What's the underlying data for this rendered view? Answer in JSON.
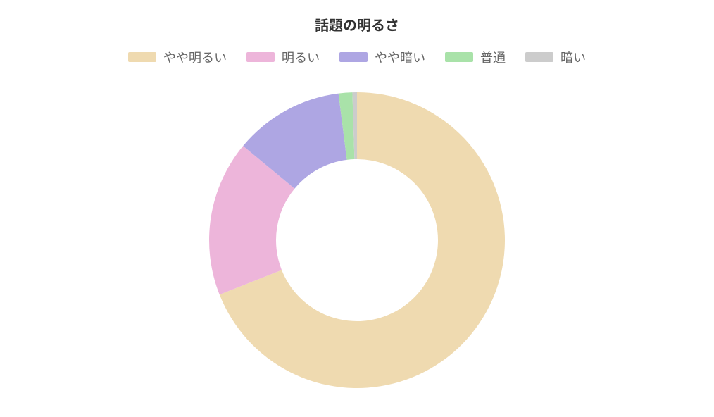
{
  "chart": {
    "type": "donut",
    "title": "話題の明るさ",
    "title_fontsize": 20,
    "title_fontweight": 700,
    "title_color": "#333333",
    "background_color": "#ffffff",
    "legend_text_color": "#666666",
    "legend_fontsize": 18,
    "legend_swatch_width": 40,
    "legend_swatch_height": 14,
    "donut_outer_radius": 210,
    "donut_inner_radius": 115,
    "start_angle_deg": 0,
    "direction": "clockwise",
    "segments": [
      {
        "label": "やや明るい",
        "value": 69,
        "color": "#efdab0"
      },
      {
        "label": "明るい",
        "value": 17,
        "color": "#edb5da"
      },
      {
        "label": "やや暗い",
        "value": 12,
        "color": "#aea6e3"
      },
      {
        "label": "普通",
        "value": 1.5,
        "color": "#a9e2a9"
      },
      {
        "label": "暗い",
        "value": 0.5,
        "color": "#cccccc"
      }
    ]
  }
}
